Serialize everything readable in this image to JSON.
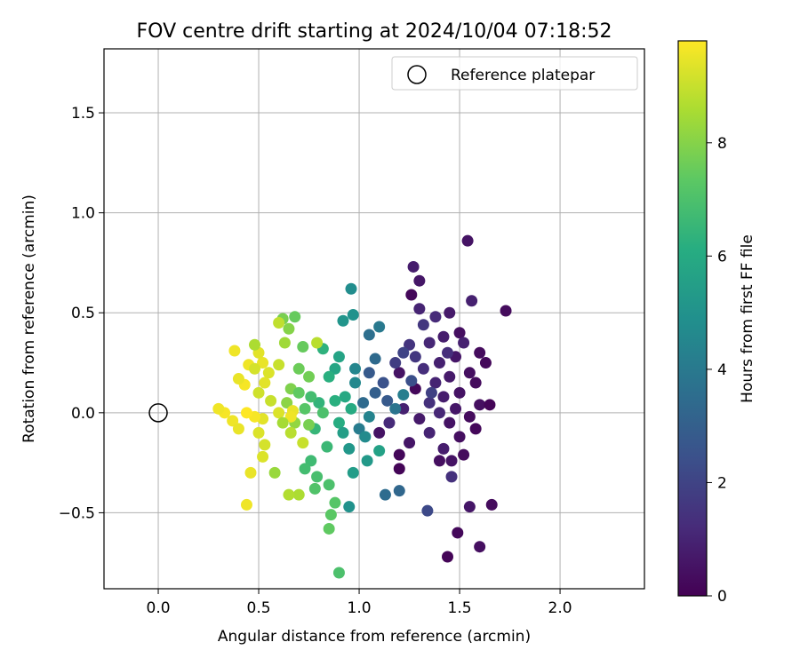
{
  "chart_data": {
    "type": "scatter",
    "title": "FOV centre drift starting at 2024/10/04 07:18:52",
    "xlabel": "Angular distance from reference (arcmin)",
    "ylabel": "Rotation from reference (arcmin)",
    "xlim": [
      -0.27,
      2.42
    ],
    "ylim": [
      -0.88,
      1.82
    ],
    "xticks": [
      "0.0",
      "0.5",
      "1.0",
      "1.5",
      "2.0"
    ],
    "xtick_values": [
      0.0,
      0.5,
      1.0,
      1.5,
      2.0
    ],
    "yticks": [
      "−0.5",
      "0.0",
      "0.5",
      "1.0",
      "1.5"
    ],
    "ytick_values": [
      -0.5,
      0.0,
      0.5,
      1.0,
      1.5
    ],
    "grid": true,
    "legend": {
      "position": "top-right",
      "label": "Reference platepar"
    },
    "reference_point": {
      "x": 0.0,
      "y": 0.0
    },
    "colorbar": {
      "label": "Hours from first FF file",
      "colormap": "viridis",
      "range": [
        0,
        9.8
      ],
      "ticks": [
        "0",
        "2",
        "4",
        "6",
        "8"
      ],
      "tick_values": [
        0,
        2,
        4,
        6,
        8
      ]
    },
    "cluster_anchors": [
      {
        "x": 1.4,
        "y": 0.15,
        "h": 0.7
      },
      {
        "x": 1.33,
        "y": 0.32,
        "h": 1.2
      },
      {
        "x": 1.3,
        "y": -0.05,
        "h": 2.2
      },
      {
        "x": 1.15,
        "y": 0.1,
        "h": 3.2
      },
      {
        "x": 1.0,
        "y": 0.0,
        "h": 4.5
      },
      {
        "x": 0.85,
        "y": 0.1,
        "h": 5.8
      },
      {
        "x": 0.78,
        "y": -0.15,
        "h": 7.0
      },
      {
        "x": 0.62,
        "y": 0.05,
        "h": 8.4
      },
      {
        "x": 0.45,
        "y": 0.1,
        "h": 9.4
      }
    ],
    "points": [
      {
        "x": 1.54,
        "y": 0.86,
        "h": 0.5
      },
      {
        "x": 1.27,
        "y": 0.73,
        "h": 0.8
      },
      {
        "x": 1.3,
        "y": 0.66,
        "h": 0.6
      },
      {
        "x": 1.26,
        "y": 0.59,
        "h": 0.2
      },
      {
        "x": 1.56,
        "y": 0.56,
        "h": 0.9
      },
      {
        "x": 1.73,
        "y": 0.51,
        "h": 0.3
      },
      {
        "x": 1.3,
        "y": 0.52,
        "h": 1.0
      },
      {
        "x": 1.45,
        "y": 0.5,
        "h": 0.7
      },
      {
        "x": 1.38,
        "y": 0.48,
        "h": 1.2
      },
      {
        "x": 1.5,
        "y": 0.4,
        "h": 0.4
      },
      {
        "x": 1.42,
        "y": 0.38,
        "h": 0.8
      },
      {
        "x": 1.35,
        "y": 0.35,
        "h": 1.1
      },
      {
        "x": 1.25,
        "y": 0.34,
        "h": 1.5
      },
      {
        "x": 1.6,
        "y": 0.3,
        "h": 0.3
      },
      {
        "x": 1.48,
        "y": 0.28,
        "h": 0.6
      },
      {
        "x": 1.4,
        "y": 0.25,
        "h": 0.9
      },
      {
        "x": 1.63,
        "y": 0.25,
        "h": 0.2
      },
      {
        "x": 1.32,
        "y": 0.22,
        "h": 1.3
      },
      {
        "x": 1.55,
        "y": 0.2,
        "h": 0.4
      },
      {
        "x": 1.2,
        "y": 0.2,
        "h": 0.5
      },
      {
        "x": 1.45,
        "y": 0.18,
        "h": 0.7
      },
      {
        "x": 1.58,
        "y": 0.15,
        "h": 0.3
      },
      {
        "x": 1.38,
        "y": 0.15,
        "h": 1.0
      },
      {
        "x": 1.28,
        "y": 0.12,
        "h": 0.2
      },
      {
        "x": 1.5,
        "y": 0.1,
        "h": 0.5
      },
      {
        "x": 1.42,
        "y": 0.08,
        "h": 0.8
      },
      {
        "x": 1.35,
        "y": 0.05,
        "h": 1.4
      },
      {
        "x": 1.6,
        "y": 0.04,
        "h": 0.4
      },
      {
        "x": 1.65,
        "y": 0.04,
        "h": 0.1
      },
      {
        "x": 1.48,
        "y": 0.02,
        "h": 0.6
      },
      {
        "x": 1.22,
        "y": 0.02,
        "h": 0.9
      },
      {
        "x": 1.4,
        "y": 0.0,
        "h": 1.1
      },
      {
        "x": 1.55,
        "y": -0.02,
        "h": 0.3
      },
      {
        "x": 1.3,
        "y": -0.03,
        "h": 0.7
      },
      {
        "x": 1.45,
        "y": -0.05,
        "h": 0.5
      },
      {
        "x": 1.58,
        "y": -0.08,
        "h": 0.2
      },
      {
        "x": 1.35,
        "y": -0.1,
        "h": 1.0
      },
      {
        "x": 1.5,
        "y": -0.12,
        "h": 0.4
      },
      {
        "x": 1.25,
        "y": -0.15,
        "h": 0.6
      },
      {
        "x": 1.42,
        "y": -0.18,
        "h": 0.8
      },
      {
        "x": 1.52,
        "y": -0.21,
        "h": 0.3
      },
      {
        "x": 1.2,
        "y": -0.21,
        "h": 0.2
      },
      {
        "x": 1.46,
        "y": -0.24,
        "h": 0.5
      },
      {
        "x": 1.4,
        "y": -0.24,
        "h": 0.4
      },
      {
        "x": 1.2,
        "y": -0.28,
        "h": 0.1
      },
      {
        "x": 1.46,
        "y": -0.32,
        "h": 1.4
      },
      {
        "x": 1.55,
        "y": -0.47,
        "h": 0.6
      },
      {
        "x": 1.66,
        "y": -0.46,
        "h": 0.3
      },
      {
        "x": 1.49,
        "y": -0.6,
        "h": 0.2
      },
      {
        "x": 1.6,
        "y": -0.67,
        "h": 0.4
      },
      {
        "x": 1.44,
        "y": -0.72,
        "h": 0.1
      },
      {
        "x": 1.34,
        "y": -0.49,
        "h": 2.2
      },
      {
        "x": 1.2,
        "y": -0.39,
        "h": 3.3
      },
      {
        "x": 1.13,
        "y": -0.41,
        "h": 3.5
      },
      {
        "x": 1.22,
        "y": 0.3,
        "h": 2.0
      },
      {
        "x": 1.18,
        "y": 0.25,
        "h": 1.8
      },
      {
        "x": 1.12,
        "y": 0.15,
        "h": 2.5
      },
      {
        "x": 1.28,
        "y": 0.28,
        "h": 1.6
      },
      {
        "x": 1.1,
        "y": -0.1,
        "h": 0.5
      },
      {
        "x": 1.15,
        "y": -0.05,
        "h": 1.2
      },
      {
        "x": 1.05,
        "y": 0.2,
        "h": 2.8
      },
      {
        "x": 1.08,
        "y": 0.1,
        "h": 3.0
      },
      {
        "x": 1.02,
        "y": 0.05,
        "h": 3.4
      },
      {
        "x": 1.05,
        "y": 0.39,
        "h": 3.6
      },
      {
        "x": 1.1,
        "y": 0.43,
        "h": 4.0
      },
      {
        "x": 1.18,
        "y": 0.02,
        "h": 3.8
      },
      {
        "x": 1.22,
        "y": 0.09,
        "h": 4.2
      },
      {
        "x": 1.05,
        "y": -0.02,
        "h": 4.4
      },
      {
        "x": 0.98,
        "y": 0.15,
        "h": 4.6
      },
      {
        "x": 0.96,
        "y": 0.62,
        "h": 4.8
      },
      {
        "x": 0.97,
        "y": 0.49,
        "h": 5.0
      },
      {
        "x": 0.92,
        "y": 0.46,
        "h": 5.1
      },
      {
        "x": 1.0,
        "y": -0.08,
        "h": 4.1
      },
      {
        "x": 1.03,
        "y": -0.12,
        "h": 4.7
      },
      {
        "x": 0.95,
        "y": -0.18,
        "h": 5.2
      },
      {
        "x": 0.97,
        "y": -0.3,
        "h": 5.4
      },
      {
        "x": 0.95,
        "y": -0.47,
        "h": 5.0
      },
      {
        "x": 1.04,
        "y": -0.24,
        "h": 5.3
      },
      {
        "x": 1.1,
        "y": -0.19,
        "h": 5.6
      },
      {
        "x": 0.9,
        "y": 0.28,
        "h": 5.7
      },
      {
        "x": 0.88,
        "y": 0.22,
        "h": 5.8
      },
      {
        "x": 0.93,
        "y": 0.08,
        "h": 5.9
      },
      {
        "x": 0.96,
        "y": 0.02,
        "h": 6.0
      },
      {
        "x": 0.9,
        "y": -0.05,
        "h": 6.1
      },
      {
        "x": 0.85,
        "y": 0.18,
        "h": 6.2
      },
      {
        "x": 0.82,
        "y": 0.32,
        "h": 6.3
      },
      {
        "x": 0.8,
        "y": 0.05,
        "h": 6.4
      },
      {
        "x": 0.78,
        "y": -0.08,
        "h": 6.5
      },
      {
        "x": 0.84,
        "y": -0.17,
        "h": 6.6
      },
      {
        "x": 0.76,
        "y": -0.24,
        "h": 6.7
      },
      {
        "x": 0.73,
        "y": -0.28,
        "h": 6.8
      },
      {
        "x": 0.79,
        "y": -0.32,
        "h": 6.9
      },
      {
        "x": 0.85,
        "y": -0.36,
        "h": 7.0
      },
      {
        "x": 0.78,
        "y": -0.38,
        "h": 7.1
      },
      {
        "x": 0.88,
        "y": -0.45,
        "h": 7.2
      },
      {
        "x": 0.86,
        "y": -0.51,
        "h": 7.3
      },
      {
        "x": 0.85,
        "y": -0.58,
        "h": 7.4
      },
      {
        "x": 0.9,
        "y": -0.8,
        "h": 7.0
      },
      {
        "x": 0.72,
        "y": 0.33,
        "h": 7.5
      },
      {
        "x": 0.7,
        "y": 0.22,
        "h": 7.6
      },
      {
        "x": 0.75,
        "y": 0.18,
        "h": 7.7
      },
      {
        "x": 0.68,
        "y": 0.48,
        "h": 7.5
      },
      {
        "x": 0.62,
        "y": 0.47,
        "h": 7.8
      },
      {
        "x": 0.65,
        "y": 0.42,
        "h": 8.0
      },
      {
        "x": 0.6,
        "y": 0.45,
        "h": 8.9
      },
      {
        "x": 0.63,
        "y": 0.35,
        "h": 8.4
      },
      {
        "x": 0.66,
        "y": 0.12,
        "h": 7.9
      },
      {
        "x": 0.64,
        "y": 0.05,
        "h": 8.1
      },
      {
        "x": 0.7,
        "y": 0.1,
        "h": 7.4
      },
      {
        "x": 0.73,
        "y": 0.02,
        "h": 7.2
      },
      {
        "x": 0.76,
        "y": 0.08,
        "h": 6.8
      },
      {
        "x": 0.68,
        "y": -0.05,
        "h": 8.2
      },
      {
        "x": 0.66,
        "y": -0.1,
        "h": 8.8
      },
      {
        "x": 0.72,
        "y": -0.15,
        "h": 9.0
      },
      {
        "x": 0.58,
        "y": -0.3,
        "h": 8.3
      },
      {
        "x": 0.7,
        "y": -0.41,
        "h": 8.6
      },
      {
        "x": 0.65,
        "y": -0.41,
        "h": 8.7
      },
      {
        "x": 0.79,
        "y": 0.35,
        "h": 8.8
      },
      {
        "x": 0.6,
        "y": 0.24,
        "h": 9.0
      },
      {
        "x": 0.55,
        "y": 0.2,
        "h": 9.3
      },
      {
        "x": 0.52,
        "y": 0.25,
        "h": 9.5
      },
      {
        "x": 0.5,
        "y": 0.3,
        "h": 9.4
      },
      {
        "x": 0.48,
        "y": 0.34,
        "h": 8.6
      },
      {
        "x": 0.45,
        "y": 0.24,
        "h": 9.6
      },
      {
        "x": 0.43,
        "y": 0.14,
        "h": 9.7
      },
      {
        "x": 0.4,
        "y": 0.17,
        "h": 9.5
      },
      {
        "x": 0.38,
        "y": 0.31,
        "h": 9.6
      },
      {
        "x": 0.48,
        "y": 0.22,
        "h": 9.2
      },
      {
        "x": 0.53,
        "y": 0.15,
        "h": 9.4
      },
      {
        "x": 0.5,
        "y": 0.1,
        "h": 9.1
      },
      {
        "x": 0.56,
        "y": 0.06,
        "h": 9.0
      },
      {
        "x": 0.6,
        "y": 0.0,
        "h": 9.3
      },
      {
        "x": 0.67,
        "y": 0.01,
        "h": 9.5
      },
      {
        "x": 0.66,
        "y": -0.02,
        "h": 9.6
      },
      {
        "x": 0.52,
        "y": -0.03,
        "h": 9.4
      },
      {
        "x": 0.48,
        "y": -0.02,
        "h": 9.7
      },
      {
        "x": 0.44,
        "y": 0.0,
        "h": 9.8
      },
      {
        "x": 0.37,
        "y": -0.04,
        "h": 9.6
      },
      {
        "x": 0.33,
        "y": 0.0,
        "h": 9.7
      },
      {
        "x": 0.3,
        "y": 0.02,
        "h": 9.6
      },
      {
        "x": 0.4,
        "y": -0.08,
        "h": 9.5
      },
      {
        "x": 0.5,
        "y": -0.1,
        "h": 9.3
      },
      {
        "x": 0.53,
        "y": -0.16,
        "h": 9.2
      },
      {
        "x": 0.52,
        "y": -0.22,
        "h": 9.3
      },
      {
        "x": 0.46,
        "y": -0.3,
        "h": 9.5
      },
      {
        "x": 0.44,
        "y": -0.46,
        "h": 9.6
      },
      {
        "x": 0.62,
        "y": -0.05,
        "h": 8.5
      },
      {
        "x": 0.75,
        "y": -0.06,
        "h": 7.8
      },
      {
        "x": 0.82,
        "y": 0.0,
        "h": 7.0
      },
      {
        "x": 0.88,
        "y": 0.06,
        "h": 6.2
      },
      {
        "x": 0.92,
        "y": -0.1,
        "h": 5.5
      },
      {
        "x": 0.98,
        "y": 0.22,
        "h": 4.5
      },
      {
        "x": 1.08,
        "y": 0.27,
        "h": 3.4
      },
      {
        "x": 1.14,
        "y": 0.06,
        "h": 2.8
      },
      {
        "x": 1.26,
        "y": 0.16,
        "h": 2.4
      },
      {
        "x": 1.32,
        "y": 0.44,
        "h": 1.6
      },
      {
        "x": 1.36,
        "y": 0.1,
        "h": 1.9
      },
      {
        "x": 1.44,
        "y": 0.3,
        "h": 1.3
      },
      {
        "x": 1.52,
        "y": 0.35,
        "h": 0.9
      }
    ]
  }
}
